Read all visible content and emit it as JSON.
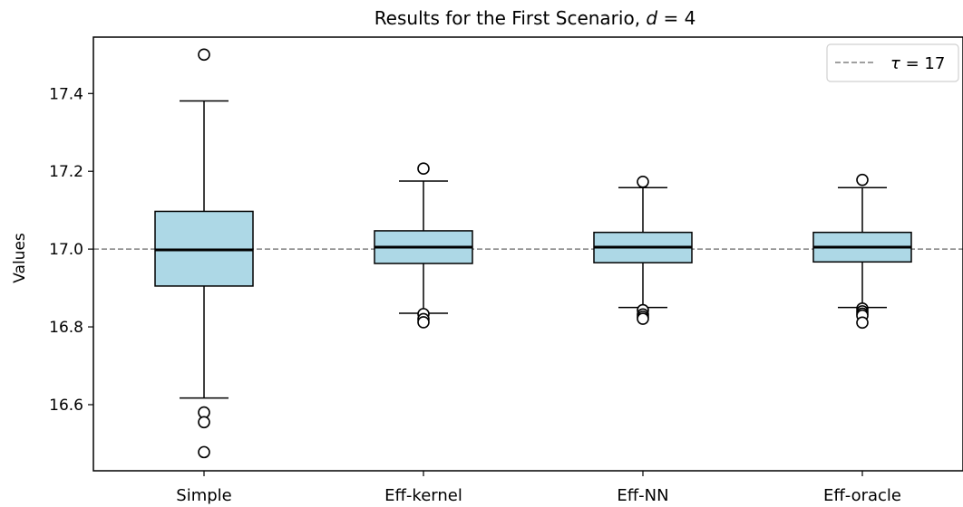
{
  "chart_data": {
    "type": "box",
    "title": "Results for the First Scenario, d = 4",
    "title_prefix": "Results for the First Scenario, ",
    "title_var": "d",
    "title_eq": " = 4",
    "xlabel": "",
    "ylabel": "Values",
    "ylim": [
      16.43,
      17.545
    ],
    "yticks": [
      16.6,
      16.8,
      17.0,
      17.2,
      17.4
    ],
    "ytick_labels": [
      "16.6",
      "16.8",
      "17.0",
      "17.2",
      "17.4"
    ],
    "grid": false,
    "categories": [
      "Simple",
      "Eff-kernel",
      "Eff-NN",
      "Eff-oracle"
    ],
    "boxes": [
      {
        "whisker_low": 16.617,
        "q1": 16.905,
        "median": 16.998,
        "q3": 17.097,
        "whisker_high": 17.381,
        "outliers": [
          16.58,
          16.555,
          16.478,
          17.5
        ]
      },
      {
        "whisker_low": 16.835,
        "q1": 16.963,
        "median": 17.005,
        "q3": 17.047,
        "whisker_high": 17.175,
        "outliers": [
          16.833,
          16.82,
          16.812,
          17.207
        ]
      },
      {
        "whisker_low": 16.85,
        "q1": 16.965,
        "median": 17.005,
        "q3": 17.043,
        "whisker_high": 17.158,
        "outliers": [
          16.843,
          16.832,
          16.826,
          16.821,
          17.173
        ]
      },
      {
        "whisker_low": 16.85,
        "q1": 16.967,
        "median": 17.005,
        "q3": 17.043,
        "whisker_high": 17.158,
        "outliers": [
          16.847,
          16.84,
          16.834,
          16.829,
          16.811,
          17.178
        ]
      }
    ],
    "reference_line": {
      "value": 17,
      "label": "τ = 17",
      "label_var": "τ",
      "label_eq": " = 17",
      "color": "#808080",
      "style": "dashed"
    },
    "legend": {
      "placement": "top-right"
    },
    "box_fill": "#add8e6",
    "box_edge": "#000000",
    "median_color": "#000000"
  }
}
